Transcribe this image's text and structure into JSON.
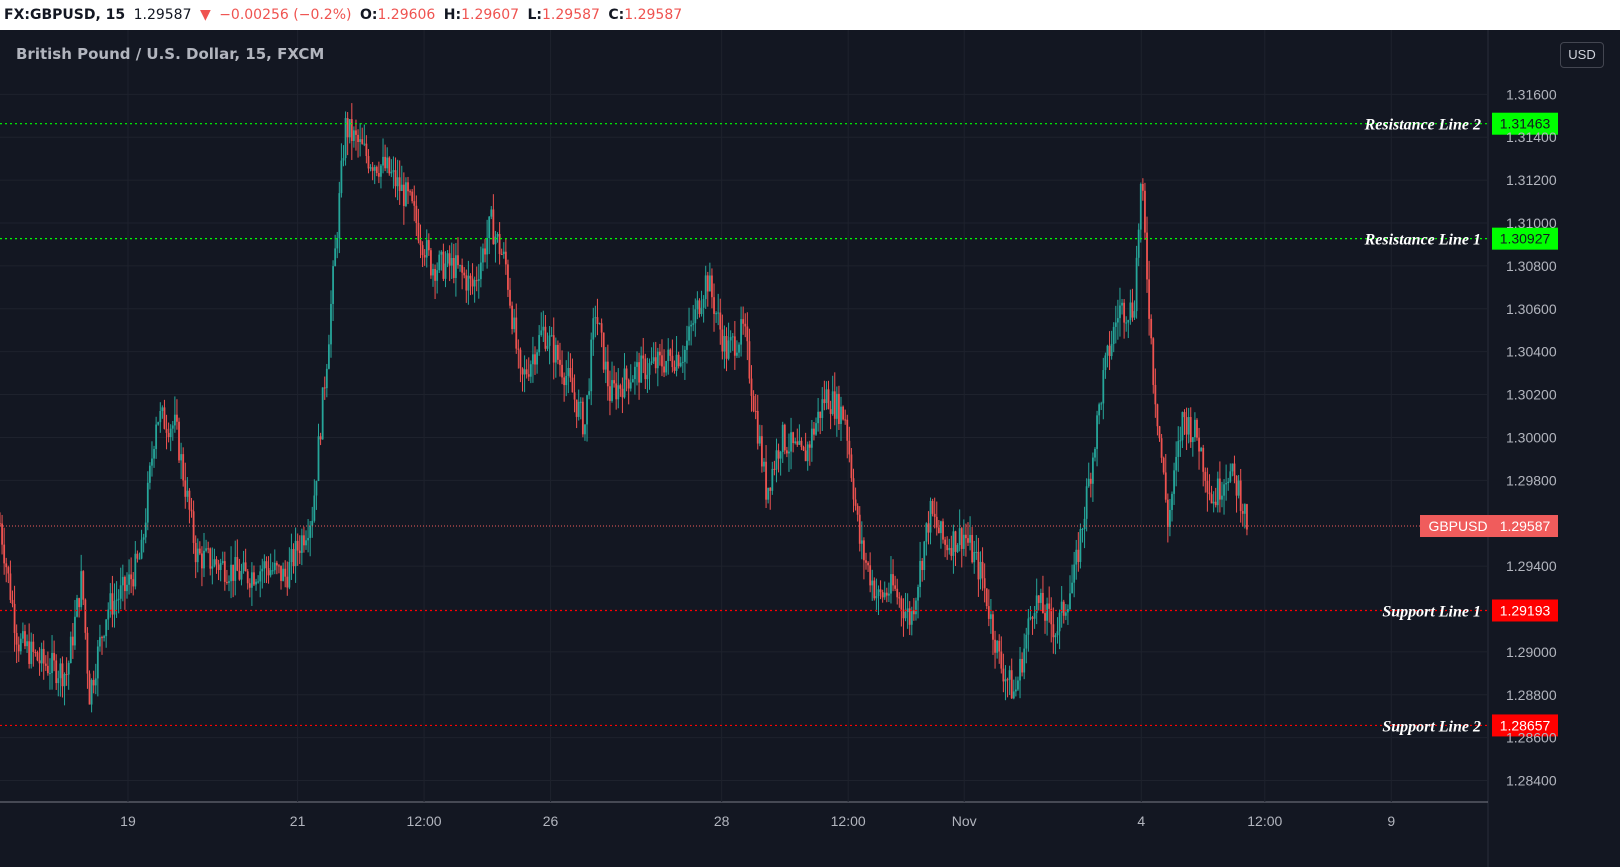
{
  "header": {
    "symbol": "FX:GBPUSD, 15",
    "last": "1.29587",
    "change": "−0.00256 (−0.2%)",
    "o_label": "O:",
    "o_value": "1.29606",
    "h_label": "H:",
    "h_value": "1.29607",
    "l_label": "L:",
    "l_value": "1.29587",
    "c_label": "C:",
    "c_value": "1.29587",
    "down_icon": "triangle-down-icon"
  },
  "chart_title": "British Pound / U.S. Dollar, 15, FXCM",
  "currency_button": "USD",
  "colors": {
    "background": "#131722",
    "up": "#26a69a",
    "down": "#ef5350",
    "resistance": "#00ff00",
    "support": "#ff0000",
    "price_tag": "#f05c5c"
  },
  "chart_data": {
    "type": "candlestick",
    "symbol": "GBPUSD",
    "interval": "15",
    "ylim": [
      1.283,
      1.319
    ],
    "yticks": [
      "1.31600",
      "1.31400",
      "1.31200",
      "1.31000",
      "1.30800",
      "1.30600",
      "1.30400",
      "1.30200",
      "1.30000",
      "1.29800",
      "1.29400",
      "1.29000",
      "1.28800",
      "1.28600",
      "1.28400"
    ],
    "x_ticks": [
      "19",
      "21",
      "12:00",
      "26",
      "28",
      "12:00",
      "Nov",
      "4",
      "12:00",
      "9"
    ],
    "x_tick_positions": [
      0.086,
      0.2,
      0.285,
      0.37,
      0.485,
      0.57,
      0.648,
      0.767,
      0.85,
      0.935
    ],
    "path": [
      [
        0.0,
        1.296
      ],
      [
        0.012,
        1.2905
      ],
      [
        0.028,
        1.2895
      ],
      [
        0.045,
        1.289
      ],
      [
        0.055,
        1.2935
      ],
      [
        0.06,
        1.288
      ],
      [
        0.072,
        1.292
      ],
      [
        0.085,
        1.293
      ],
      [
        0.095,
        1.2945
      ],
      [
        0.105,
        1.301
      ],
      [
        0.118,
        1.3005
      ],
      [
        0.132,
        1.2945
      ],
      [
        0.15,
        1.294
      ],
      [
        0.165,
        1.2935
      ],
      [
        0.178,
        1.294
      ],
      [
        0.192,
        1.2935
      ],
      [
        0.21,
        1.2965
      ],
      [
        0.22,
        1.304
      ],
      [
        0.232,
        1.3145
      ],
      [
        0.248,
        1.313
      ],
      [
        0.26,
        1.3125
      ],
      [
        0.275,
        1.311
      ],
      [
        0.29,
        1.308
      ],
      [
        0.305,
        1.308
      ],
      [
        0.318,
        1.307
      ],
      [
        0.33,
        1.31
      ],
      [
        0.34,
        1.308
      ],
      [
        0.35,
        1.3025
      ],
      [
        0.365,
        1.305
      ],
      [
        0.38,
        1.303
      ],
      [
        0.393,
        1.3005
      ],
      [
        0.4,
        1.306
      ],
      [
        0.41,
        1.302
      ],
      [
        0.425,
        1.303
      ],
      [
        0.445,
        1.3035
      ],
      [
        0.46,
        1.304
      ],
      [
        0.475,
        1.3075
      ],
      [
        0.488,
        1.304
      ],
      [
        0.5,
        1.305
      ],
      [
        0.515,
        1.2975
      ],
      [
        0.525,
        1.3
      ],
      [
        0.54,
        1.299
      ],
      [
        0.555,
        1.302
      ],
      [
        0.568,
        1.301
      ],
      [
        0.578,
        1.295
      ],
      [
        0.59,
        1.2925
      ],
      [
        0.6,
        1.293
      ],
      [
        0.612,
        1.2915
      ],
      [
        0.625,
        1.2965
      ],
      [
        0.635,
        1.295
      ],
      [
        0.648,
        1.2955
      ],
      [
        0.66,
        1.2935
      ],
      [
        0.672,
        1.2895
      ],
      [
        0.682,
        1.288
      ],
      [
        0.695,
        1.2925
      ],
      [
        0.71,
        1.291
      ],
      [
        0.722,
        1.2935
      ],
      [
        0.733,
        1.2985
      ],
      [
        0.742,
        1.303
      ],
      [
        0.752,
        1.306
      ],
      [
        0.762,
        1.306
      ],
      [
        0.767,
        1.312
      ],
      [
        0.775,
        1.303
      ],
      [
        0.785,
        1.296
      ],
      [
        0.795,
        1.301
      ],
      [
        0.805,
        1.3
      ],
      [
        0.815,
        1.297
      ],
      [
        0.825,
        1.2985
      ],
      [
        0.833,
        1.2975
      ],
      [
        0.838,
        1.296
      ]
    ],
    "lines": [
      {
        "label": "Resistance Line 2",
        "value": "1.31463",
        "y": 1.31463,
        "kind": "resistance"
      },
      {
        "label": "Resistance Line 1",
        "value": "1.30927",
        "y": 1.30927,
        "kind": "resistance"
      },
      {
        "label": "Support Line 1",
        "value": "1.29193",
        "y": 1.29193,
        "kind": "support"
      },
      {
        "label": "Support Line 2",
        "value": "1.28657",
        "y": 1.28657,
        "kind": "support"
      }
    ],
    "last_price": {
      "label": "GBPUSD",
      "value": "1.29587",
      "y": 1.29587
    }
  }
}
